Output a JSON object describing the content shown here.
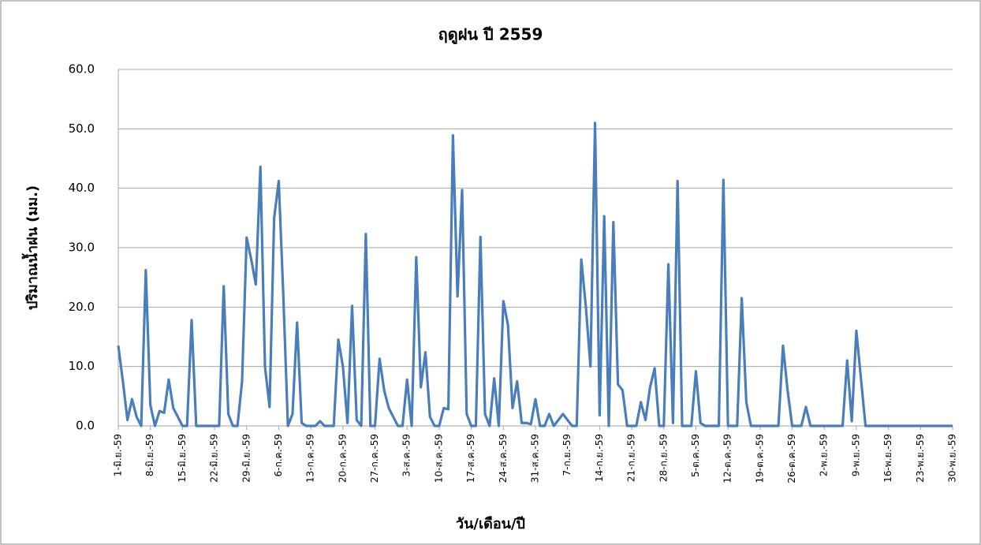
{
  "chart_data": {
    "type": "line",
    "title": "ฤดูฝน ปี 2559",
    "x_label": "วัน/เดือน/ปี",
    "y_label": "ปริมาณน้ำฝน (มม.)",
    "categories": [
      "1-มิ.ย.-59",
      null,
      null,
      null,
      null,
      null,
      null,
      "8-มิ.ย.-59",
      null,
      null,
      null,
      null,
      null,
      null,
      "15-มิ.ย.-59",
      null,
      null,
      null,
      null,
      null,
      null,
      "22-มิ.ย.-59",
      null,
      null,
      null,
      null,
      null,
      null,
      "29-มิ.ย.-59",
      null,
      null,
      null,
      null,
      null,
      null,
      "6-ก.ค.-59",
      null,
      null,
      null,
      null,
      null,
      null,
      "13-ก.ค.-59",
      null,
      null,
      null,
      null,
      null,
      null,
      "20-ก.ค.-59",
      null,
      null,
      null,
      null,
      null,
      null,
      "27-ก.ค.-59",
      null,
      null,
      null,
      null,
      null,
      null,
      "3-ส.ค.-59",
      null,
      null,
      null,
      null,
      null,
      null,
      "10-ส.ค.-59",
      null,
      null,
      null,
      null,
      null,
      null,
      "17-ส.ค.-59",
      null,
      null,
      null,
      null,
      null,
      null,
      "24-ส.ค.-59",
      null,
      null,
      null,
      null,
      null,
      null,
      "31-ส.ค.-59",
      null,
      null,
      null,
      null,
      null,
      null,
      "7-ก.ย.-59",
      null,
      null,
      null,
      null,
      null,
      null,
      "14-ก.ย.-59",
      null,
      null,
      null,
      null,
      null,
      null,
      "21-ก.ย.-59",
      null,
      null,
      null,
      null,
      null,
      null,
      "28-ก.ย.-59",
      null,
      null,
      null,
      null,
      null,
      null,
      "5-ต.ค.-59",
      null,
      null,
      null,
      null,
      null,
      null,
      "12-ต.ค.-59",
      null,
      null,
      null,
      null,
      null,
      null,
      "19-ต.ค.-59",
      null,
      null,
      null,
      null,
      null,
      null,
      "26-ต.ค.-59",
      null,
      null,
      null,
      null,
      null,
      null,
      "2-พ.ย.-59",
      null,
      null,
      null,
      null,
      null,
      null,
      "9-พ.ย.-59",
      null,
      null,
      null,
      null,
      null,
      null,
      "16-พ.ย.-59",
      null,
      null,
      null,
      null,
      null,
      null,
      "23-พ.ย.-59",
      null,
      null,
      null,
      null,
      null,
      null,
      "30-พ.ย.-59"
    ],
    "values": [
      13.5,
      7.5,
      1.0,
      4.5,
      1.5,
      0,
      26.2,
      3.5,
      0,
      2.5,
      2.2,
      7.8,
      3,
      1.5,
      0,
      0,
      17.8,
      0,
      0,
      0,
      0,
      0,
      0,
      23.5,
      2,
      0,
      0,
      7.5,
      31.7,
      28,
      23.8,
      43.6,
      10,
      3.2,
      35,
      41.2,
      22,
      0,
      2,
      17.4,
      0.5,
      0,
      0,
      0,
      0.8,
      0,
      0,
      0,
      14.5,
      10,
      0.5,
      20.2,
      1,
      0,
      32.3,
      0,
      0,
      11.3,
      6,
      3,
      1.5,
      0,
      0,
      7.8,
      0,
      28.4,
      6.5,
      12.4,
      1.5,
      0,
      0,
      3,
      2.8,
      48.9,
      21.8,
      39.7,
      2,
      0,
      0,
      31.8,
      2,
      0,
      8,
      0,
      21,
      17,
      3,
      7.5,
      0.5,
      0.5,
      0.3,
      4.5,
      0,
      0,
      2,
      0,
      1,
      2,
      1,
      0,
      0,
      28,
      20,
      10,
      51,
      1.8,
      35.3,
      0,
      34.3,
      7,
      6,
      0,
      0,
      0,
      4,
      1,
      6.5,
      9.7,
      0,
      0,
      27.2,
      0.5,
      41.2,
      0,
      0,
      0,
      9.2,
      0.5,
      0,
      0,
      0,
      0,
      41.4,
      0,
      0,
      0,
      21.5,
      4,
      0,
      0,
      0,
      0,
      0,
      0,
      0,
      13.5,
      6,
      0,
      0,
      0,
      3.2,
      0,
      0,
      0,
      0,
      0,
      0,
      0,
      0,
      11,
      0.8,
      16,
      8,
      0,
      0,
      0,
      0,
      0,
      0,
      0,
      0,
      0,
      0,
      0,
      0,
      0,
      0,
      0,
      0,
      0,
      0,
      0,
      0
    ],
    "color": "#4a7ebb",
    "ylim": [
      0,
      60
    ],
    "yticks": [
      {
        "value": 0,
        "label": "0.0"
      },
      {
        "value": 10,
        "label": "10.0"
      },
      {
        "value": 20,
        "label": "20.0"
      },
      {
        "value": 30,
        "label": "30.0"
      },
      {
        "value": 40,
        "label": "40.0"
      },
      {
        "value": 50,
        "label": "50.0"
      },
      {
        "value": 60,
        "label": "60.0"
      }
    ],
    "grid": true
  }
}
